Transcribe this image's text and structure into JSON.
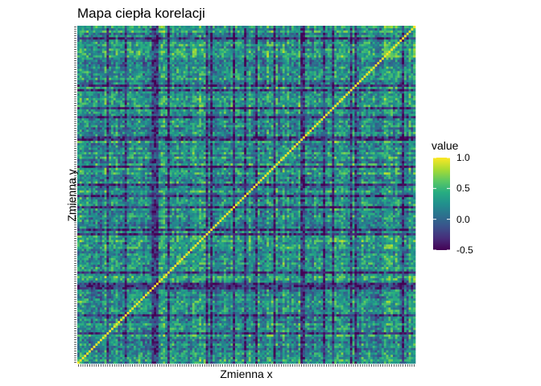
{
  "chart_data": {
    "type": "heatmap",
    "title": "Mapa ciepła korelacji",
    "xlabel": "Zmienna x",
    "ylabel": "Zmienna y",
    "n_variables": 150,
    "value_range": [
      -0.5,
      1.0
    ],
    "diagonal_value": 1.0,
    "colormap": "viridis",
    "legend": {
      "title": "value",
      "position": "right",
      "ticks": [
        {
          "value": 1.0,
          "label": "1.0"
        },
        {
          "value": 0.5,
          "label": "0.5"
        },
        {
          "value": 0.0,
          "label": "0.0"
        },
        {
          "value": -0.5,
          "label": "-0.5"
        }
      ]
    },
    "grid": false
  },
  "colors": {
    "viridis_low": "#440154",
    "viridis_mid": "#21918c",
    "viridis_high": "#fde725"
  }
}
